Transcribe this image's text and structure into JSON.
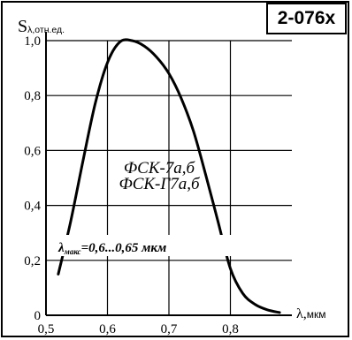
{
  "badge": "2-076x",
  "chart_data": {
    "type": "line",
    "title": "",
    "ylabel_main": "S",
    "ylabel_sub": "λ,отн.ед.",
    "xlabel_symbol": "λ,",
    "xlabel_unit": "мкм",
    "xlim": [
      0.5,
      0.9
    ],
    "ylim": [
      0,
      1.0
    ],
    "x_ticks": [
      "0,5",
      "0,6",
      "0,7",
      "0,8"
    ],
    "y_ticks": [
      "0",
      "0,2",
      "0,4",
      "0,6",
      "0,8",
      "1,0"
    ],
    "grid": true,
    "series": [
      {
        "x": [
          0.52,
          0.54,
          0.56,
          0.58,
          0.6,
          0.62,
          0.64,
          0.66,
          0.68,
          0.7,
          0.72,
          0.74,
          0.76,
          0.78,
          0.8,
          0.82,
          0.84,
          0.86,
          0.88
        ],
        "y": [
          0.15,
          0.34,
          0.56,
          0.77,
          0.92,
          0.995,
          1.0,
          0.98,
          0.94,
          0.88,
          0.79,
          0.67,
          0.51,
          0.34,
          0.17,
          0.08,
          0.04,
          0.02,
          0.01
        ]
      }
    ],
    "annotations": {
      "device_1": "ФСК-7а,б",
      "device_2": "ФСК-Г7а,б",
      "peak_symbol": "λ",
      "peak_sub": "макс",
      "peak_value": "=0,6...0,65 мкм"
    }
  }
}
